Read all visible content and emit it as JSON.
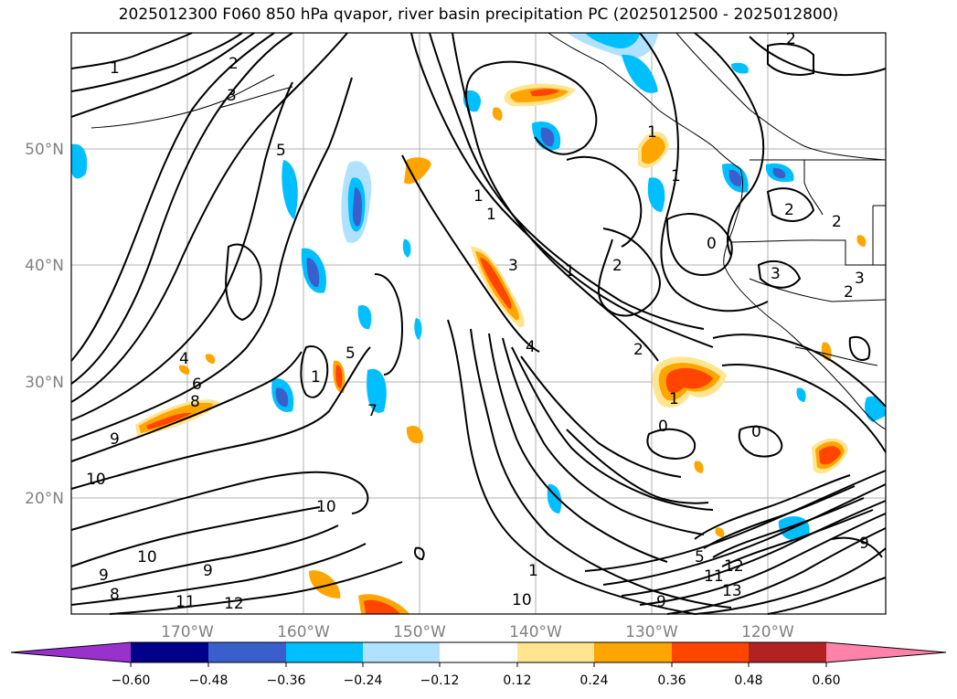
{
  "title": "2025012300 F060 850 hPa qvapor, river basin precipitation PC (2025012500 - 2025012800)",
  "map": {
    "lat_labels": [
      "50°N",
      "40°N",
      "30°N",
      "20°N"
    ],
    "lon_labels": [
      "170°W",
      "160°W",
      "150°W",
      "140°W",
      "130°W",
      "120°W"
    ],
    "contour_labels": [
      "1",
      "2",
      "3",
      "5",
      "1",
      "2",
      "1",
      "1",
      "3",
      "1",
      "2",
      "4",
      "2",
      "1",
      "0",
      "0",
      "0",
      "1",
      "2",
      "2",
      "3",
      "3",
      "2",
      "4",
      "6",
      "8",
      "9",
      "10",
      "10",
      "9",
      "10",
      "9",
      "8",
      "11",
      "12",
      "10",
      "9",
      "12",
      "13",
      "1",
      "7",
      "5",
      "1",
      "5",
      "9",
      "11"
    ]
  },
  "colorbar": {
    "ticks": [
      "−0.60",
      "−0.48",
      "−0.36",
      "−0.24",
      "−0.12",
      "0.12",
      "0.24",
      "0.36",
      "0.48",
      "0.60"
    ],
    "colors": [
      "#9932cc",
      "#00008b",
      "#3a5fcd",
      "#00bfff",
      "#b0e2ff",
      "#ffffff",
      "#ffe58f",
      "#ffa500",
      "#ff4500",
      "#b22222",
      "#ff82ab"
    ]
  },
  "anomaly_colors": {
    "neg_light": "#b0e2ff",
    "neg_mid": "#00bfff",
    "neg_dark": "#3a5fcd",
    "pos_light": "#ffe58f",
    "pos_mid": "#ffa500",
    "pos_dark": "#ff4500"
  }
}
